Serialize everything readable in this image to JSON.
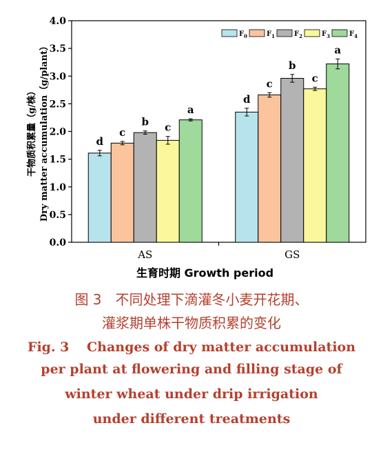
{
  "chart_data": {
    "type": "bar",
    "categories": [
      "AS",
      "GS"
    ],
    "xlabel": "生育时期 Growth period",
    "ylabel": "干物质积累量 Dry matter accumulation（g/plant）",
    "ylabel_cn": "干物质积累量（g/株）",
    "ylabel_en": "Dry matter accumulation（g/plant）",
    "ylim": [
      0.0,
      4.0
    ],
    "yticks": [
      "0.0",
      "0.5",
      "1.0",
      "1.5",
      "2.0",
      "2.5",
      "3.0",
      "3.5",
      "4.0"
    ],
    "legend_position": "top-right",
    "series": [
      {
        "name": "F0",
        "base": "F",
        "sub": "0",
        "color": "#b7e3ec",
        "values": [
          1.61,
          2.35
        ],
        "errors": [
          0.05,
          0.07
        ],
        "labels": [
          "d",
          "d"
        ]
      },
      {
        "name": "F1",
        "base": "F",
        "sub": "1",
        "color": "#fbc49c",
        "values": [
          1.79,
          2.66
        ],
        "errors": [
          0.03,
          0.04
        ],
        "labels": [
          "c",
          "c"
        ]
      },
      {
        "name": "F2",
        "base": "F",
        "sub": "2",
        "color": "#b3b3b3",
        "values": [
          1.98,
          2.96
        ],
        "errors": [
          0.03,
          0.07
        ],
        "labels": [
          "b",
          "b"
        ]
      },
      {
        "name": "F3",
        "base": "F",
        "sub": "3",
        "color": "#fbf79c",
        "values": [
          1.84,
          2.77
        ],
        "errors": [
          0.07,
          0.03
        ],
        "labels": [
          "c",
          "c"
        ]
      },
      {
        "name": "F4",
        "base": "F",
        "sub": "4",
        "color": "#9fd99b",
        "values": [
          2.21,
          3.22
        ],
        "errors": [
          0.02,
          0.09
        ],
        "labels": [
          "a",
          "a"
        ]
      }
    ]
  },
  "caption": {
    "cn_line1": "图 3　不同处理下滴灌冬小麦开花期、",
    "cn_line2": "灌浆期单株干物质积累的变化",
    "en_line1": "Fig. 3　 Changes of dry matter accumulation",
    "en_line2": "per plant at flowering and filling stage of",
    "en_line3": "winter wheat under drip irrigation",
    "en_line4": "under different treatments"
  }
}
